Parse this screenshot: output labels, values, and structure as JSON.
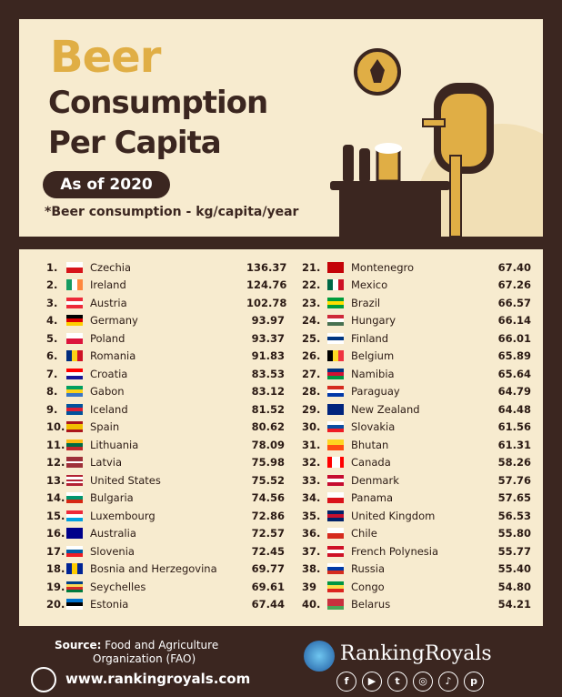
{
  "header": {
    "title1": "Beer",
    "title2": "Consumption",
    "title3": "Per Capita",
    "as_of": "As of 2020",
    "note": "*Beer consumption - kg/capita/year"
  },
  "colors": {
    "background": "#3b2620",
    "panel": "#f7ebcf",
    "accent": "#e0ae45"
  },
  "rows_left": [
    {
      "rank": "1.",
      "country": "Czechia",
      "value": "136.37",
      "flag": "czechia-flag"
    },
    {
      "rank": "2.",
      "country": "Ireland",
      "value": "124.76",
      "flag": "ireland-flag"
    },
    {
      "rank": "3.",
      "country": "Austria",
      "value": "102.78",
      "flag": "austria-flag"
    },
    {
      "rank": "4.",
      "country": "Germany",
      "value": "93.97",
      "flag": "germany-flag"
    },
    {
      "rank": "5.",
      "country": "Poland",
      "value": "93.37",
      "flag": "poland-flag"
    },
    {
      "rank": "6.",
      "country": "Romania",
      "value": "91.83",
      "flag": "romania-flag"
    },
    {
      "rank": "7.",
      "country": "Croatia",
      "value": "83.53",
      "flag": "croatia-flag"
    },
    {
      "rank": "8.",
      "country": "Gabon",
      "value": "83.12",
      "flag": "gabon-flag"
    },
    {
      "rank": "9.",
      "country": "Iceland",
      "value": "81.52",
      "flag": "iceland-flag"
    },
    {
      "rank": "10.",
      "country": "Spain",
      "value": "80.62",
      "flag": "spain-flag"
    },
    {
      "rank": "11.",
      "country": "Lithuania",
      "value": "78.09",
      "flag": "lithuania-flag"
    },
    {
      "rank": "12.",
      "country": "Latvia",
      "value": "75.98",
      "flag": "latvia-flag"
    },
    {
      "rank": "13.",
      "country": "United States",
      "value": "75.52",
      "flag": "usa-flag"
    },
    {
      "rank": "14.",
      "country": "Bulgaria",
      "value": "74.56",
      "flag": "bulgaria-flag"
    },
    {
      "rank": "15.",
      "country": "Luxembourg",
      "value": "72.86",
      "flag": "luxembourg-flag"
    },
    {
      "rank": "16.",
      "country": "Australia",
      "value": "72.57",
      "flag": "australia-flag"
    },
    {
      "rank": "17.",
      "country": "Slovenia",
      "value": "72.45",
      "flag": "slovenia-flag"
    },
    {
      "rank": "18.",
      "country": "Bosnia and Herzegovina",
      "value": "69.77",
      "flag": "bosnia-flag"
    },
    {
      "rank": "19.",
      "country": "Seychelles",
      "value": "69.61",
      "flag": "seychelles-flag"
    },
    {
      "rank": "20.",
      "country": "Estonia",
      "value": "67.44",
      "flag": "estonia-flag"
    }
  ],
  "rows_right": [
    {
      "rank": "21.",
      "country": "Montenegro",
      "value": "67.40",
      "flag": "montenegro-flag"
    },
    {
      "rank": "22.",
      "country": "Mexico",
      "value": "67.26",
      "flag": "mexico-flag"
    },
    {
      "rank": "23.",
      "country": "Brazil",
      "value": "66.57",
      "flag": "brazil-flag"
    },
    {
      "rank": "24.",
      "country": "Hungary",
      "value": "66.14",
      "flag": "hungary-flag"
    },
    {
      "rank": "25.",
      "country": "Finland",
      "value": "66.01",
      "flag": "finland-flag"
    },
    {
      "rank": "26.",
      "country": "Belgium",
      "value": "65.89",
      "flag": "belgium-flag"
    },
    {
      "rank": "27.",
      "country": "Namibia",
      "value": "65.64",
      "flag": "namibia-flag"
    },
    {
      "rank": "28.",
      "country": "Paraguay",
      "value": "64.79",
      "flag": "paraguay-flag"
    },
    {
      "rank": "29.",
      "country": "New Zealand",
      "value": "64.48",
      "flag": "new-zealand-flag"
    },
    {
      "rank": "30.",
      "country": "Slovakia",
      "value": "61.56",
      "flag": "slovakia-flag"
    },
    {
      "rank": "31.",
      "country": "Bhutan",
      "value": "61.31",
      "flag": "bhutan-flag"
    },
    {
      "rank": "32.",
      "country": "Canada",
      "value": "58.26",
      "flag": "canada-flag"
    },
    {
      "rank": "33.",
      "country": "Denmark",
      "value": "57.76",
      "flag": "denmark-flag"
    },
    {
      "rank": "34.",
      "country": "Panama",
      "value": "57.65",
      "flag": "panama-flag"
    },
    {
      "rank": "35.",
      "country": "United Kingdom",
      "value": "56.53",
      "flag": "uk-flag"
    },
    {
      "rank": "36.",
      "country": "Chile",
      "value": "55.80",
      "flag": "chile-flag"
    },
    {
      "rank": "37.",
      "country": "French Polynesia",
      "value": "55.77",
      "flag": "french-polynesia-flag"
    },
    {
      "rank": "38.",
      "country": "Russia",
      "value": "55.40",
      "flag": "russia-flag"
    },
    {
      "rank": "39",
      "country": "Congo",
      "value": "54.80",
      "flag": "congo-flag"
    },
    {
      "rank": "40.",
      "country": "Belarus",
      "value": "54.21",
      "flag": "belarus-flag"
    }
  ],
  "footer": {
    "source_label": "Source:",
    "source_line1": "Food and Agriculture",
    "source_line2": "Organization (FAO)",
    "url": "www.rankingroyals.com",
    "brand": "RankingRoyals"
  }
}
